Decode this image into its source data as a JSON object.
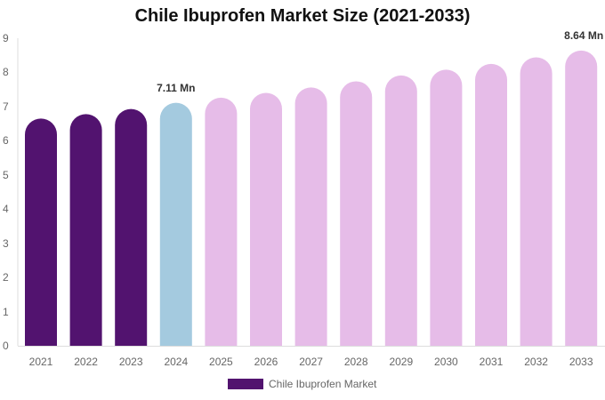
{
  "chart_data": {
    "type": "bar",
    "title": "Chile Ibuprofen Market Size (2021-2033)",
    "xlabel": "",
    "ylabel": "",
    "ylim": [
      0,
      9
    ],
    "yticks": [
      0,
      1,
      2,
      3,
      4,
      5,
      6,
      7,
      8,
      9
    ],
    "grid": false,
    "legend_position": "bottom",
    "categories": [
      "2021",
      "2022",
      "2023",
      "2024",
      "2025",
      "2026",
      "2027",
      "2028",
      "2029",
      "2030",
      "2031",
      "2032",
      "2033"
    ],
    "series": [
      {
        "name": "Chile Ibuprofen Market",
        "values": [
          6.65,
          6.78,
          6.93,
          7.11,
          7.26,
          7.4,
          7.56,
          7.74,
          7.91,
          8.08,
          8.25,
          8.44,
          8.64
        ]
      }
    ],
    "bar_colors": [
      "#52136F",
      "#52136F",
      "#52136F",
      "#A4CADF",
      "#E6BCE8",
      "#E6BCE8",
      "#E6BCE8",
      "#E6BCE8",
      "#E6BCE8",
      "#E6BCE8",
      "#E6BCE8",
      "#E6BCE8",
      "#E6BCE8"
    ],
    "annotations": [
      {
        "category": "2024",
        "text": "7.11 Mn"
      },
      {
        "category": "2033",
        "text": "8.64 Mn"
      }
    ]
  },
  "title": "Chile Ibuprofen Market Size (2021-2033)",
  "legend": {
    "label": "Chile Ibuprofen Market",
    "color": "#52136F"
  }
}
